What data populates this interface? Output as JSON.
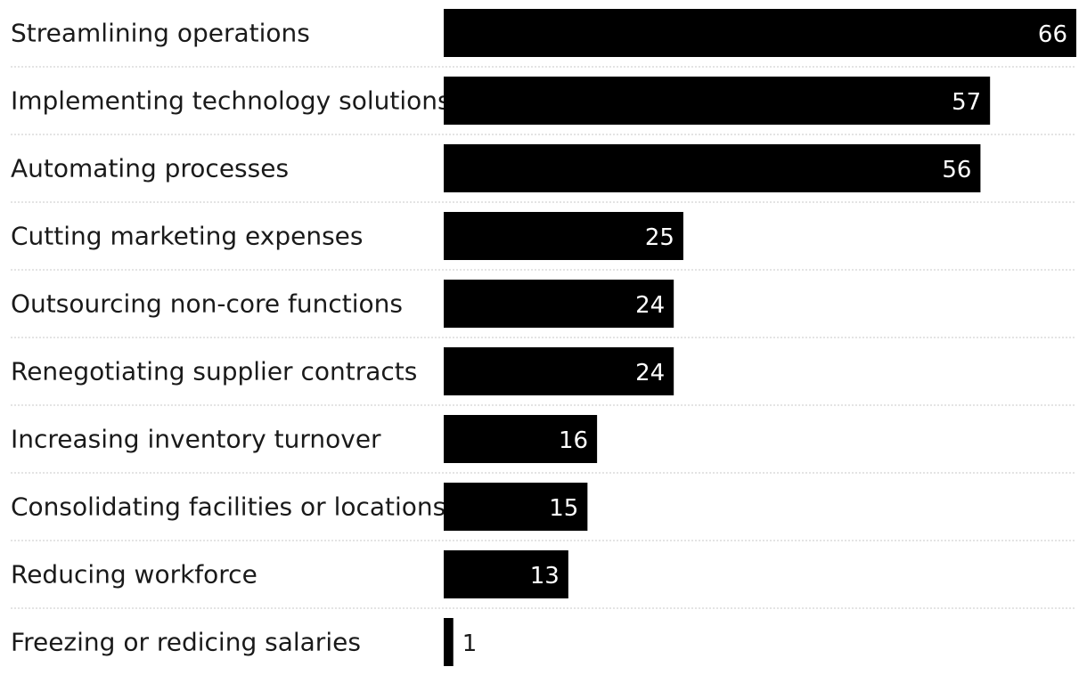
{
  "chart_data": {
    "type": "bar",
    "orientation": "horizontal",
    "title": "",
    "xlabel": "",
    "ylabel": "",
    "xlim": [
      0,
      66
    ],
    "grid": false,
    "categories": [
      "Streamlining operations",
      "Implementing technology solutions",
      "Automating processes",
      "Cutting marketing expenses",
      "Outsourcing non-core functions",
      "Renegotiating supplier contracts",
      "Increasing inventory turnover",
      "Consolidating facilities or locations",
      "Reducing workforce",
      "Freezing or redicing salaries"
    ],
    "values": [
      66,
      57,
      56,
      25,
      24,
      24,
      16,
      15,
      13,
      1
    ],
    "bar_color": "#000000",
    "label_color_inside": "#ffffff",
    "label_color_outside": "#1a1a1a"
  }
}
